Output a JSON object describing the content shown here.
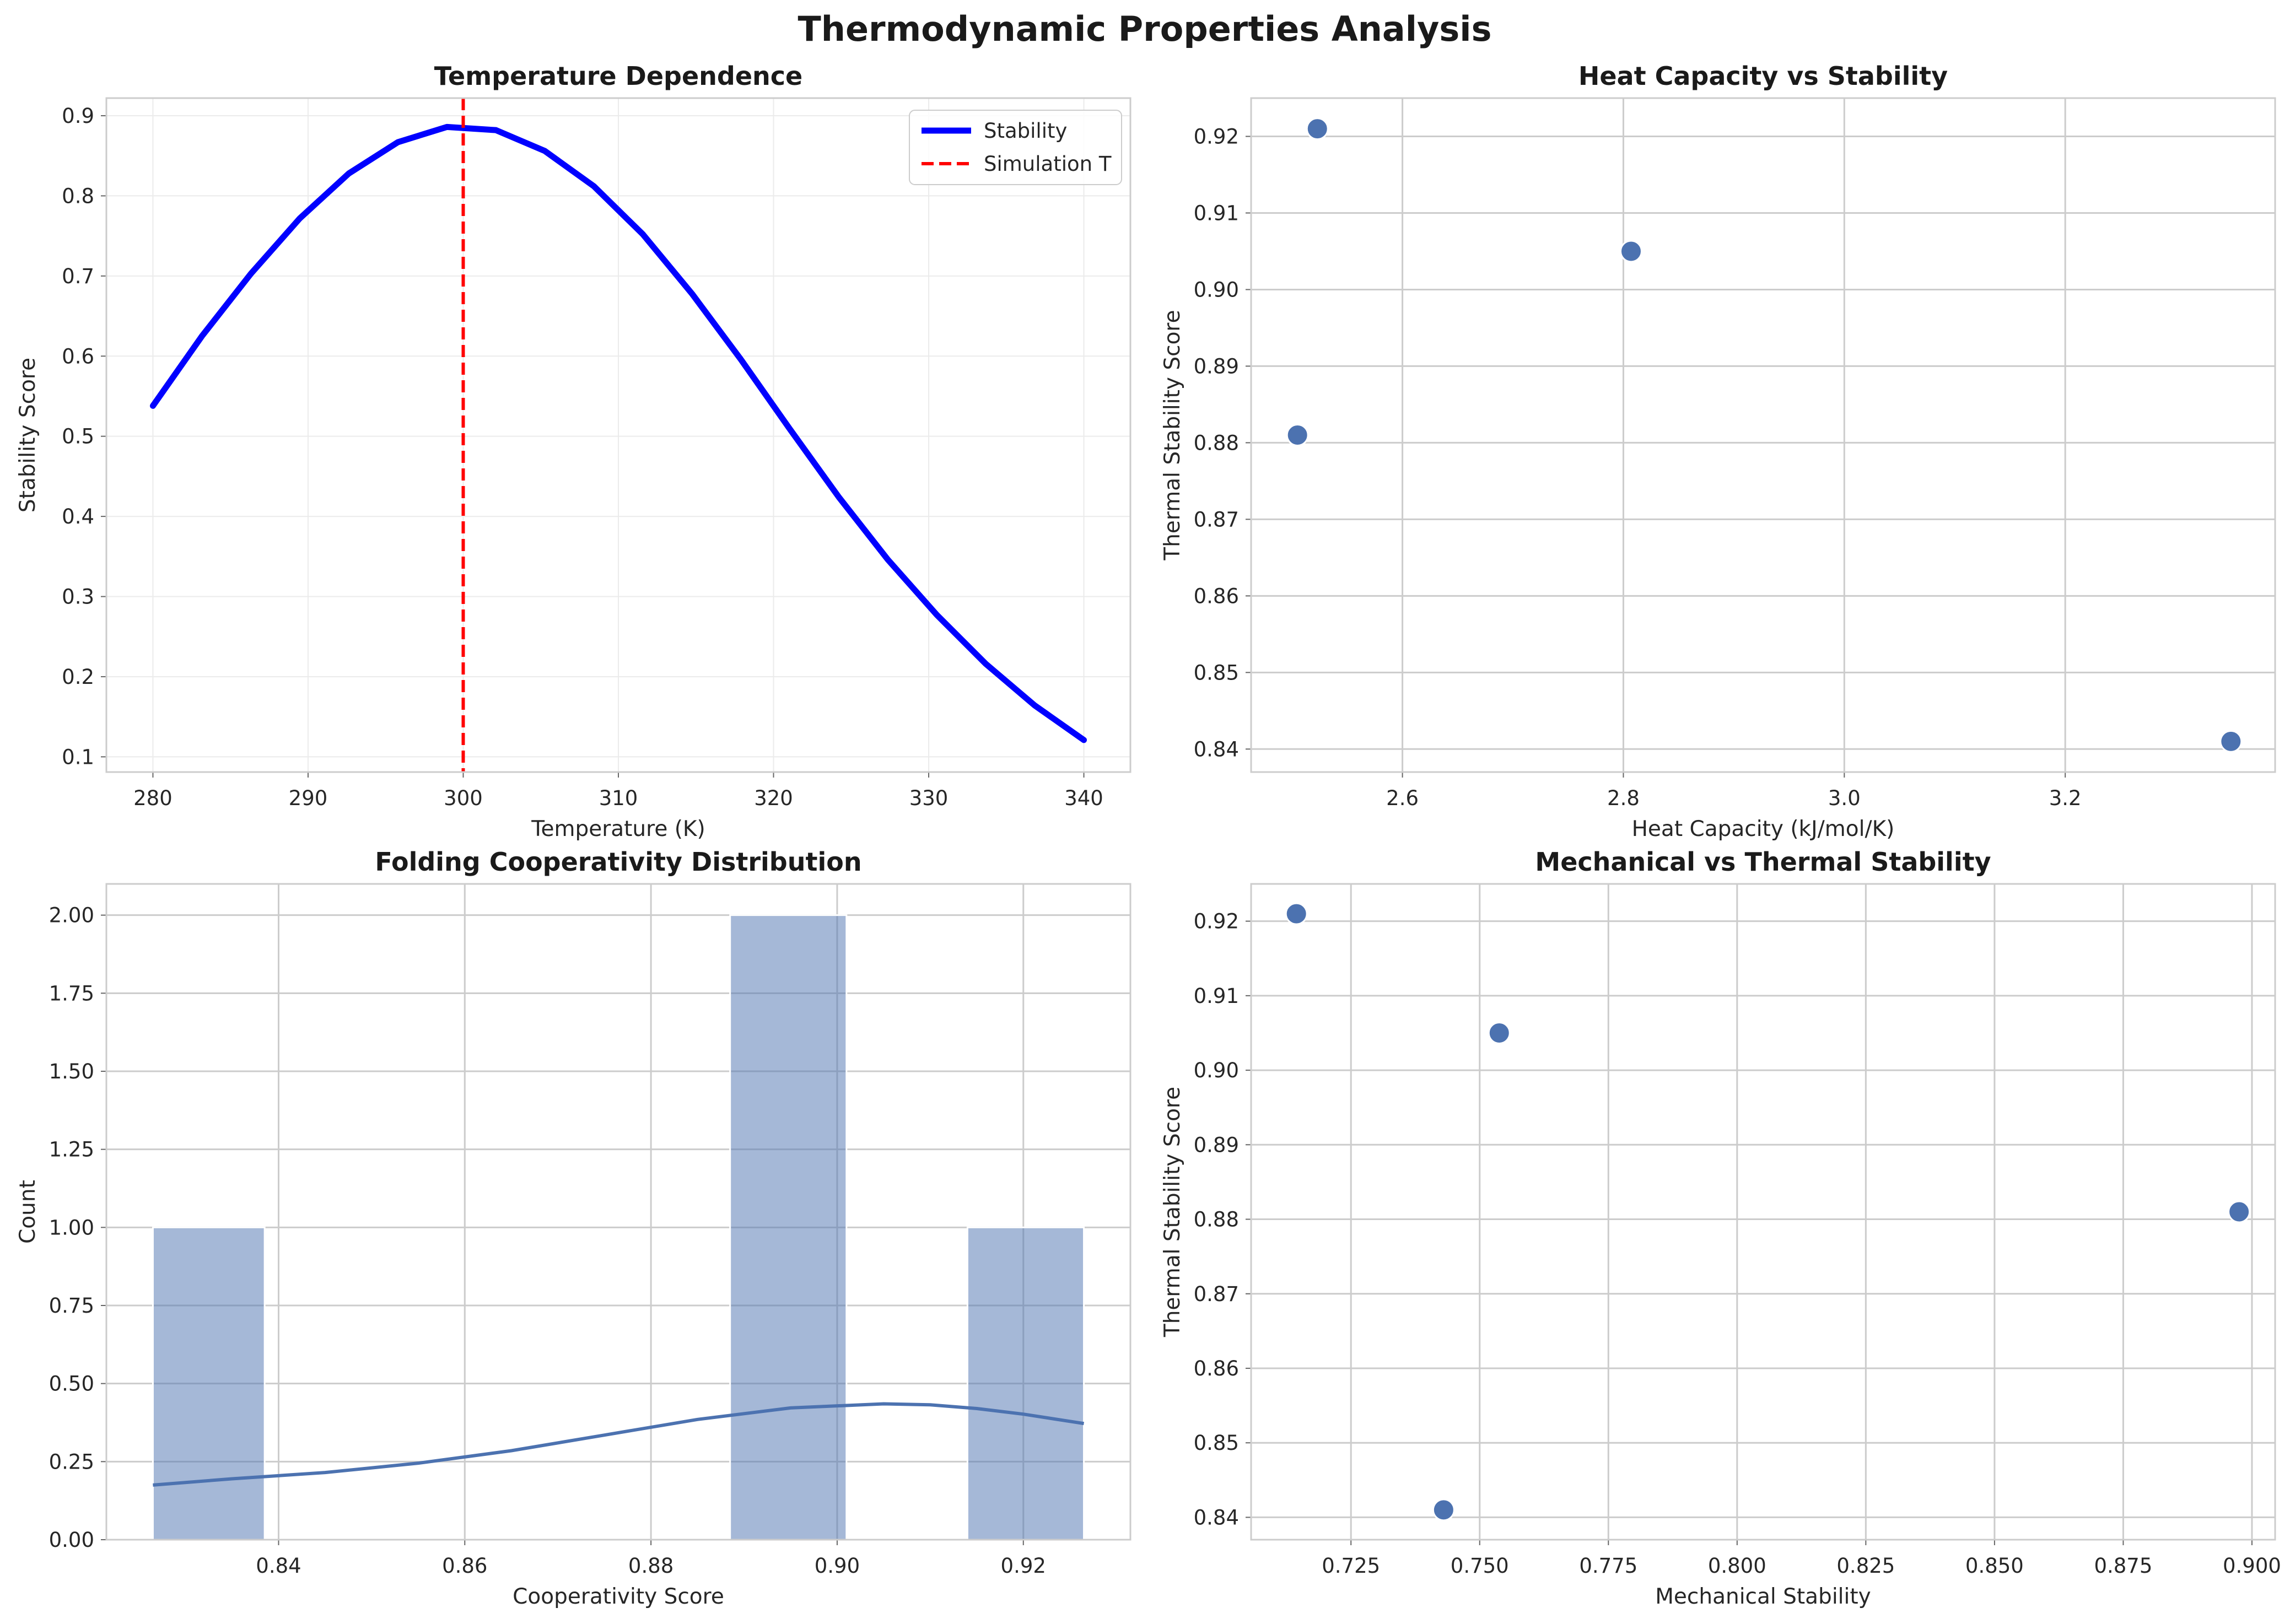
{
  "figure": {
    "suptitle": "Thermodynamic Properties Analysis"
  },
  "chart_data": [
    {
      "type": "line",
      "title": "Temperature Dependence",
      "xlabel": "Temperature (K)",
      "ylabel": "Stability Score",
      "xlim": [
        277.0,
        343.0
      ],
      "ylim": [
        0.081,
        0.922
      ],
      "xticks": [
        280,
        290,
        300,
        310,
        320,
        330,
        340
      ],
      "yticks": [
        0.1,
        0.2,
        0.3,
        0.4,
        0.5,
        0.6,
        0.7,
        0.8,
        0.9
      ],
      "grid": true,
      "legend": "top-right",
      "series": [
        {
          "name": "Stability",
          "color": "#0000ff",
          "x": [
            280.0,
            283.16,
            286.32,
            289.47,
            292.63,
            295.79,
            298.95,
            302.11,
            305.26,
            308.42,
            311.58,
            314.74,
            317.89,
            321.05,
            324.21,
            327.37,
            330.53,
            333.68,
            336.84,
            340.0
          ],
          "values": [
            0.538,
            0.625,
            0.703,
            0.772,
            0.828,
            0.867,
            0.886,
            0.882,
            0.856,
            0.812,
            0.752,
            0.678,
            0.596,
            0.509,
            0.424,
            0.346,
            0.277,
            0.216,
            0.164,
            0.121
          ]
        }
      ],
      "vline": {
        "name": "Simulation T",
        "x": 300,
        "color": "#ff0000",
        "style": "dashed"
      }
    },
    {
      "type": "scatter",
      "title": "Heat Capacity vs Stability",
      "xlabel": "Heat Capacity (kJ/mol/K)",
      "ylabel": "Thermal Stability Score",
      "xlim": [
        2.463,
        3.39
      ],
      "ylim": [
        0.837,
        0.925
      ],
      "xticks": [
        2.6,
        2.8,
        3.0,
        3.2
      ],
      "yticks": [
        0.84,
        0.85,
        0.86,
        0.87,
        0.88,
        0.89,
        0.9,
        0.91,
        0.92
      ],
      "grid": true,
      "color": "#4c72b0",
      "points": [
        {
          "x": 2.505,
          "y": 0.881
        },
        {
          "x": 2.523,
          "y": 0.921
        },
        {
          "x": 2.807,
          "y": 0.905
        },
        {
          "x": 3.35,
          "y": 0.841
        }
      ]
    },
    {
      "type": "bar",
      "title": "Folding Cooperativity Distribution",
      "xlabel": "Cooperativity Score",
      "ylabel": "Count",
      "xlim": [
        0.8215,
        0.9315
      ],
      "ylim": [
        0,
        2.1
      ],
      "xticks": [
        0.84,
        0.86,
        0.88,
        0.9,
        0.92
      ],
      "yticks": [
        0.0,
        0.25,
        0.5,
        0.75,
        1.0,
        1.25,
        1.5,
        1.75,
        2.0
      ],
      "grid": true,
      "color": "#4c72b0",
      "bins": [
        {
          "x0": 0.8265,
          "x1": 0.8385,
          "count": 1
        },
        {
          "x0": 0.8885,
          "x1": 0.901,
          "count": 2
        },
        {
          "x0": 0.914,
          "x1": 0.9265,
          "count": 1
        }
      ],
      "kde": {
        "x": [
          0.8265,
          0.835,
          0.845,
          0.855,
          0.865,
          0.875,
          0.885,
          0.895,
          0.905,
          0.91,
          0.915,
          0.92,
          0.9265
        ],
        "y": [
          0.175,
          0.195,
          0.215,
          0.245,
          0.285,
          0.335,
          0.385,
          0.422,
          0.435,
          0.432,
          0.42,
          0.402,
          0.372
        ]
      }
    },
    {
      "type": "scatter",
      "title": "Mechanical vs Thermal Stability",
      "xlabel": "Mechanical Stability",
      "ylabel": "Thermal Stability Score",
      "xlim": [
        0.7056,
        0.9045
      ],
      "ylim": [
        0.837,
        0.925
      ],
      "xticks": [
        0.725,
        0.75,
        0.775,
        0.8,
        0.825,
        0.85,
        0.875,
        0.9
      ],
      "yticks": [
        0.84,
        0.85,
        0.86,
        0.87,
        0.88,
        0.89,
        0.9,
        0.91,
        0.92
      ],
      "grid": true,
      "color": "#4c72b0",
      "points": [
        {
          "x": 0.7144,
          "y": 0.921
        },
        {
          "x": 0.743,
          "y": 0.841
        },
        {
          "x": 0.7538,
          "y": 0.905
        },
        {
          "x": 0.8975,
          "y": 0.881
        }
      ]
    }
  ]
}
